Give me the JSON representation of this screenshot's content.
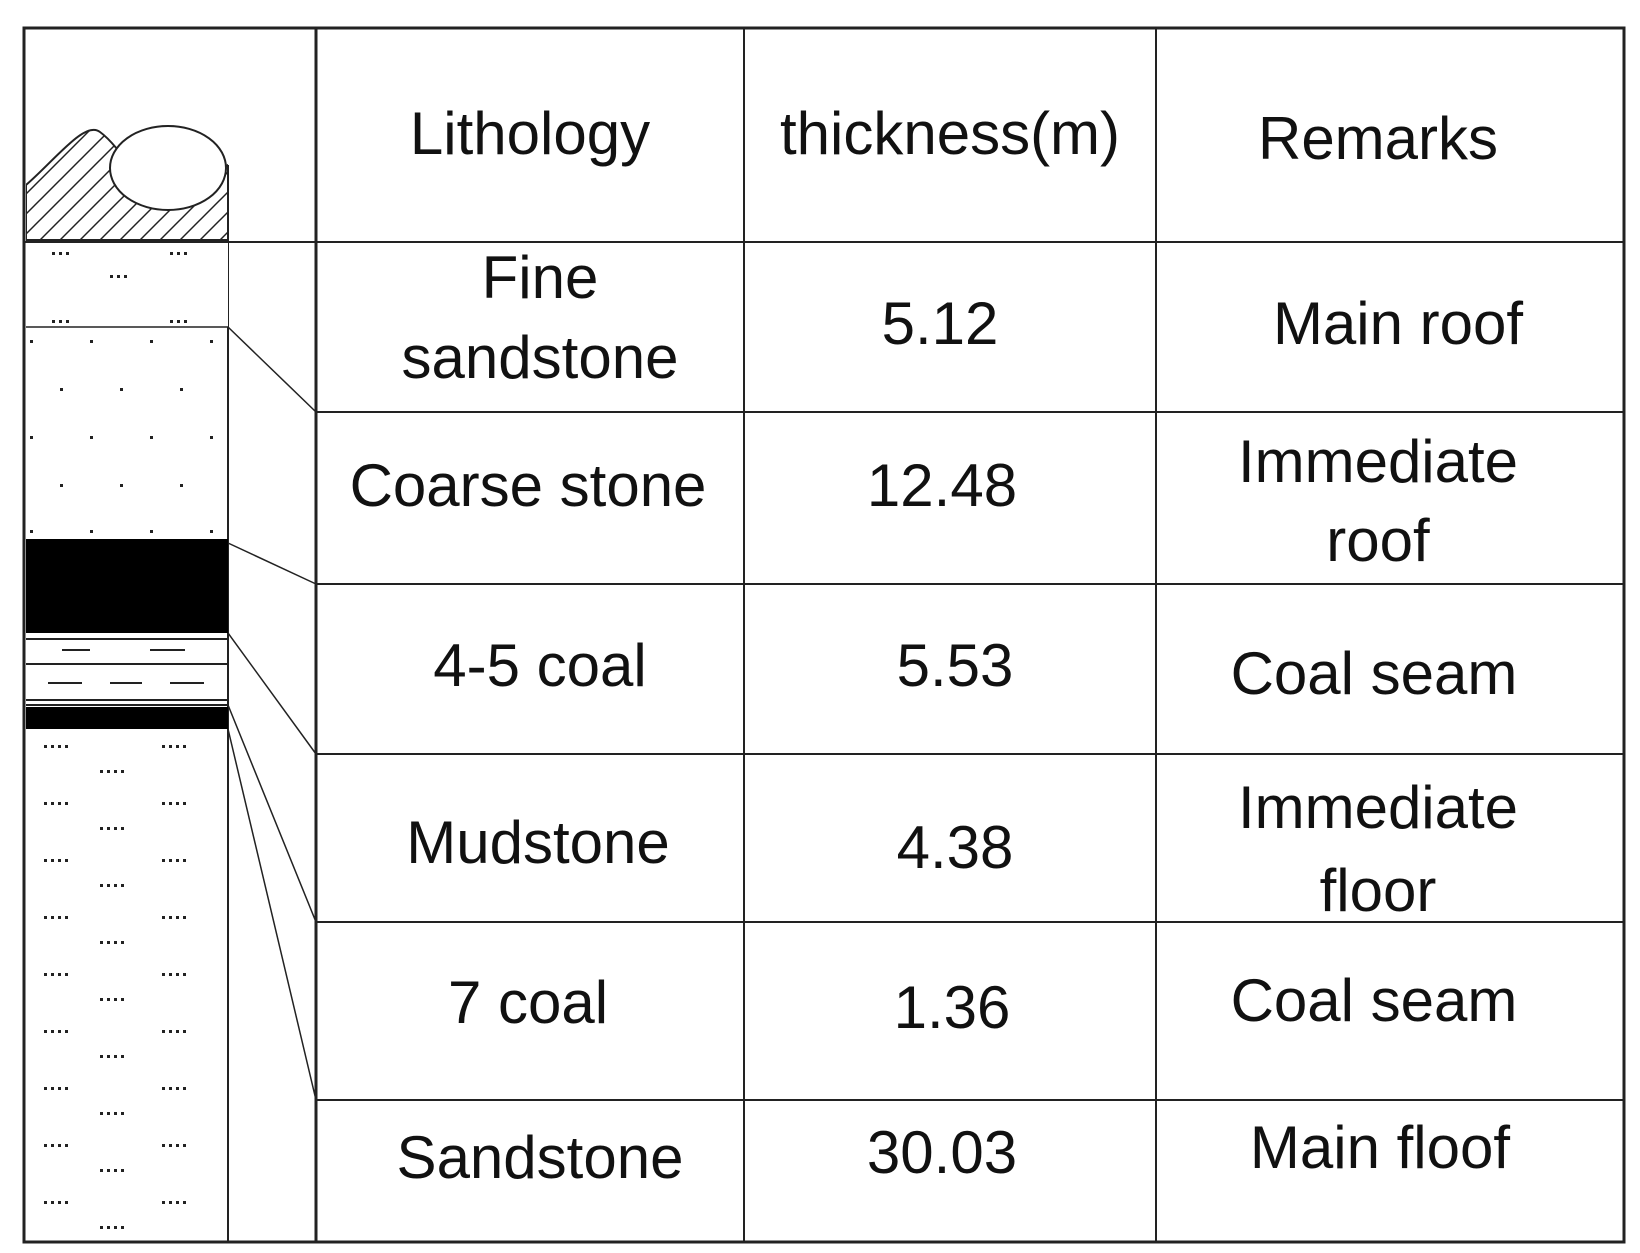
{
  "table": {
    "headers": {
      "lithology": "Lithology",
      "thickness": "thickness(m)",
      "remarks": "Remarks"
    },
    "rows": [
      {
        "lithology": [
          "Fine",
          "sandstone"
        ],
        "thickness": "5.12",
        "remarks": [
          "Main roof"
        ]
      },
      {
        "lithology": [
          "Coarse stone"
        ],
        "thickness": "12.48",
        "remarks": [
          "Immediate",
          "roof"
        ]
      },
      {
        "lithology": [
          "4-5 coal"
        ],
        "thickness": "5.53",
        "remarks": [
          "Coal seam"
        ]
      },
      {
        "lithology": [
          "Mudstone"
        ],
        "thickness": "4.38",
        "remarks": [
          "Immediate",
          "floor"
        ]
      },
      {
        "lithology": [
          "7 coal"
        ],
        "thickness": "1.36",
        "remarks": [
          "Coal seam"
        ]
      },
      {
        "lithology": [
          "Sandstone"
        ],
        "thickness": "30.03",
        "remarks": [
          "Main floof"
        ]
      }
    ]
  },
  "strata_column": {
    "layers": [
      "fine-sandstone",
      "coarse-stone",
      "4-5-coal",
      "mudstone",
      "7-coal",
      "sandstone"
    ]
  }
}
